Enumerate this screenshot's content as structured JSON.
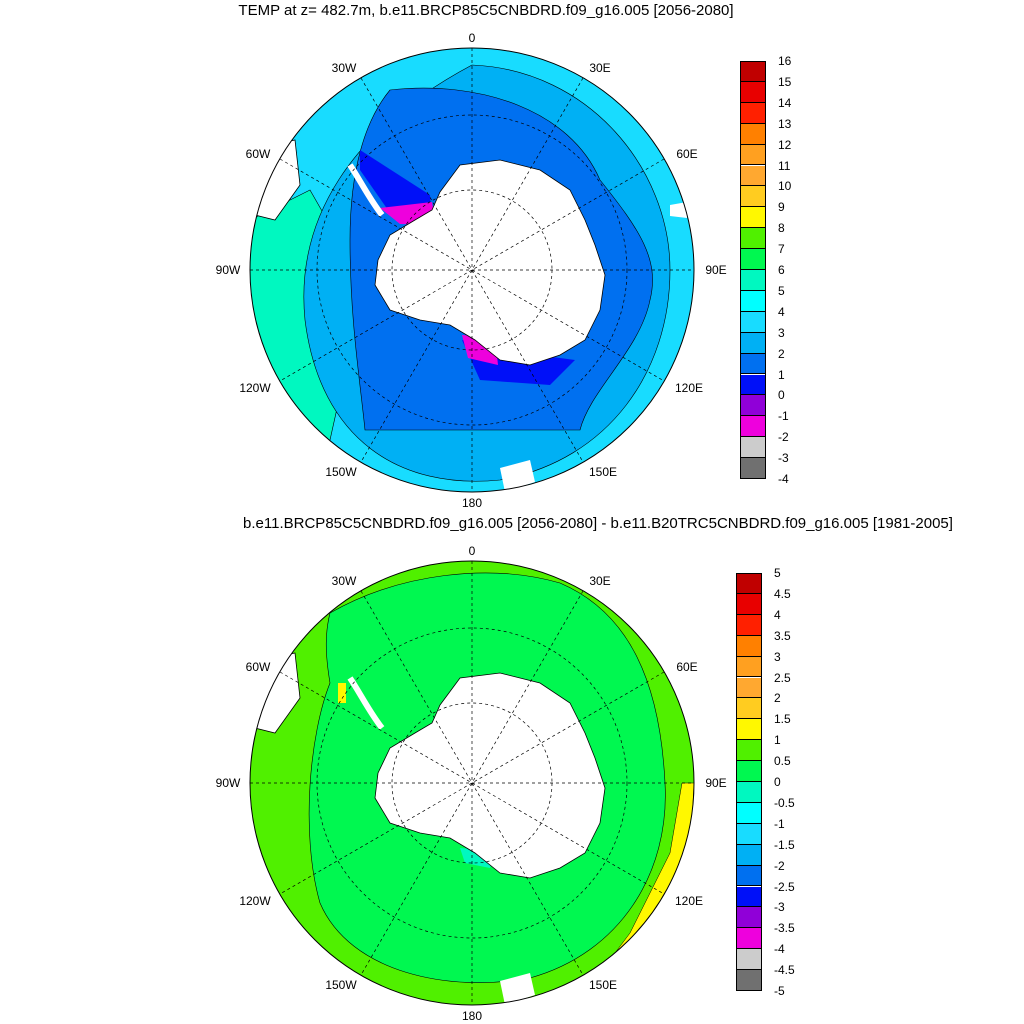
{
  "panels": [
    {
      "title": "TEMP at z= 482.7m, b.e11.BRCP85C5CNBDRD.f09_g16.005 [2056-2080]",
      "lon_labels": [
        "0",
        "30E",
        "60E",
        "90E",
        "120E",
        "150E",
        "180",
        "150W",
        "120W",
        "90W",
        "60W",
        "30W"
      ],
      "colorbar": {
        "colors": [
          "#707070",
          "#cccccc",
          "#ee00dd",
          "#9000d8",
          "#0010f8",
          "#0070f0",
          "#00b0f4",
          "#18dcff",
          "#00ffff",
          "#00f8c0",
          "#00f850",
          "#50f000",
          "#fff800",
          "#ffcc20",
          "#ffa830",
          "#ffa020",
          "#ff8000",
          "#ff2000",
          "#e80000",
          "#c00000"
        ],
        "labels": [
          "-4",
          "-3",
          "-2",
          "-1",
          "0",
          "1",
          "2",
          "3",
          "4",
          "5",
          "6",
          "7",
          "8",
          "9",
          "10",
          "11",
          "12",
          "13",
          "14",
          "15",
          "16"
        ]
      }
    },
    {
      "title": "b.e11.BRCP85C5CNBDRD.f09_g16.005 [2056-2080] - b.e11.B20TRC5CNBDRD.f09_g16.005 [1981-2005]",
      "lon_labels": [
        "0",
        "30E",
        "60E",
        "90E",
        "120E",
        "150E",
        "180",
        "150W",
        "120W",
        "90W",
        "60W",
        "30W"
      ],
      "colorbar": {
        "colors": [
          "#707070",
          "#cccccc",
          "#ee00dd",
          "#9000d8",
          "#0010f8",
          "#0070f0",
          "#00b0f4",
          "#18dcff",
          "#00ffff",
          "#00f8c0",
          "#00f850",
          "#50f000",
          "#fff800",
          "#ffcc20",
          "#ffa830",
          "#ffa020",
          "#ff8000",
          "#ff2000",
          "#e80000",
          "#c00000"
        ],
        "labels": [
          "-5",
          "-4.5",
          "-4",
          "-3.5",
          "-3",
          "-2.5",
          "-2",
          "-1.5",
          "-1",
          "-0.5",
          "0",
          "0.5",
          "1",
          "1.5",
          "2",
          "2.5",
          "3",
          "3.5",
          "4",
          "4.5",
          "5"
        ]
      }
    }
  ],
  "colors": {
    "land": "#ffffff",
    "t_ring_outer": "#18dcff",
    "t_ring_a": "#00b0f4",
    "t_ring_b": "#0070f0",
    "t_coast": "#0010f8",
    "t_shelf": "#ee00dd",
    "t_west": "#00f8c0",
    "d_ring": "#00f850",
    "d_outer": "#50f000",
    "d_warm": "#fff800",
    "d_cool": "#00f8c0"
  }
}
